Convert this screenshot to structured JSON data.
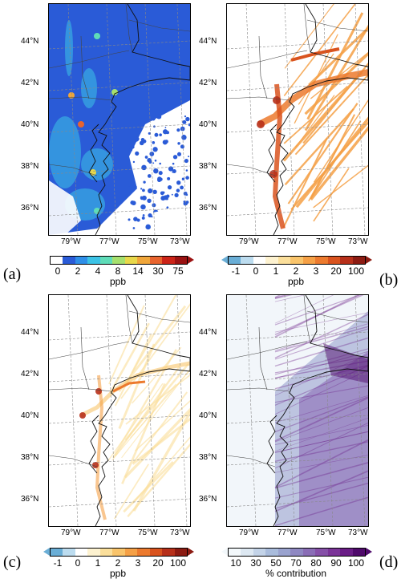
{
  "panels": [
    {
      "label": "(a)",
      "lat_labels": [
        "44°N",
        "42°N",
        "40°N",
        "38°N",
        "36°N"
      ],
      "lon_labels": [
        "79°W",
        "77°W",
        "75°W",
        "73°W"
      ],
      "colorbar_ticks": [
        "0",
        "2",
        "4",
        "8",
        "14",
        "30",
        "75"
      ],
      "colorbar_unit": "ppb",
      "colors": [
        "#ffffff",
        "#2a5bd7",
        "#2f8fe8",
        "#3cc3e6",
        "#5fdcb8",
        "#a6e06e",
        "#e8d84a",
        "#f0a63a",
        "#e8642e",
        "#cc2418",
        "#9b1212"
      ],
      "map_style": "concentration-blue"
    },
    {
      "label": "(b)",
      "lat_labels": [
        "44°N",
        "42°N",
        "40°N",
        "38°N",
        "36°N"
      ],
      "lon_labels": [
        "79°W",
        "77°W",
        "75°W",
        "73°W"
      ],
      "colorbar_ticks": [
        "-1",
        "0",
        "1",
        "2",
        "3",
        "20",
        "100"
      ],
      "colorbar_unit": "ppb",
      "colors": [
        "#6aaed6",
        "#bcdcef",
        "#ffffff",
        "#fdf2d0",
        "#fbdf9b",
        "#f9c46b",
        "#f5a046",
        "#ec7a2e",
        "#d9531e",
        "#b7301a",
        "#8c1b12"
      ],
      "map_style": "difference-orange"
    },
    {
      "label": "(c)",
      "lat_labels": [
        "44°N",
        "42°N",
        "40°N",
        "38°N",
        "36°N"
      ],
      "lon_labels": [
        "79°W",
        "77°W",
        "75°W",
        "73°W"
      ],
      "colorbar_ticks": [
        "-1",
        "0",
        "1",
        "2",
        "3",
        "20",
        "100"
      ],
      "colorbar_unit": "ppb",
      "colors": [
        "#6aaed6",
        "#bcdcef",
        "#ffffff",
        "#fdf2d0",
        "#fbdf9b",
        "#f9c46b",
        "#f5a046",
        "#ec7a2e",
        "#d9531e",
        "#b7301a",
        "#8c1b12"
      ],
      "map_style": "difference-orange-light"
    },
    {
      "label": "(d)",
      "lat_labels": [
        "44°N",
        "42°N",
        "40°N",
        "38°N",
        "36°N"
      ],
      "lon_labels": [
        "79°W",
        "77°W",
        "75°W",
        "73°W"
      ],
      "colorbar_ticks": [
        "10",
        "30",
        "50",
        "70",
        "80",
        "90",
        "100"
      ],
      "colorbar_unit": "% contribution",
      "colors": [
        "#f3f8fb",
        "#dde8f2",
        "#c3d3e8",
        "#a9bcdc",
        "#9aa3cf",
        "#8f88c2",
        "#8a6db6",
        "#8650a8",
        "#7b3498",
        "#6a1d86",
        "#4f0a6b"
      ],
      "map_style": "contribution-purple"
    }
  ]
}
